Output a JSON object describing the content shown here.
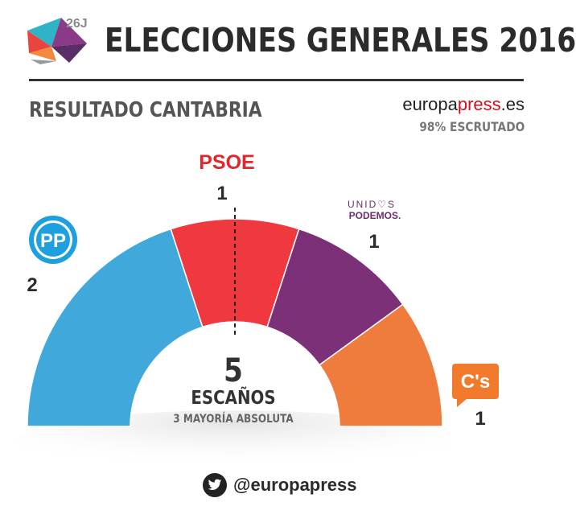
{
  "header": {
    "logo_badge": "26J",
    "title": "ELECCIONES GENERALES 2016",
    "subtitle": "RESULTADO CANTABRIA",
    "brand_part1": "europa",
    "brand_part2": "press",
    "brand_part3": ".es",
    "scrutiny": "98% ESCRUTADO"
  },
  "center": {
    "total": "5",
    "total_label": "ESCAÑOS",
    "majority": "3 MAYORÍA ABSOLUTA"
  },
  "footer": {
    "icon": "twitter-icon",
    "handle": "@europapress"
  },
  "colors": {
    "pp": "#40a8da",
    "psoe": "#f0393f",
    "podemos": "#7b3078",
    "cs": "#ef7b3c",
    "brand_accent": "#d20f1b"
  },
  "chart_data": {
    "type": "pie",
    "title": "ELECCIONES GENERALES 2016",
    "subtitle": "RESULTADO CANTABRIA",
    "total_seats": 5,
    "majority": 3,
    "parties": [
      {
        "name": "PP",
        "seats": 2,
        "color": "#40a8da"
      },
      {
        "name": "PSOE",
        "seats": 1,
        "color": "#f0393f"
      },
      {
        "name": "UNIDOS PODEMOS.",
        "seats": 1,
        "color": "#7b3078"
      },
      {
        "name": "C's",
        "seats": 1,
        "color": "#ef7b3c"
      }
    ]
  }
}
